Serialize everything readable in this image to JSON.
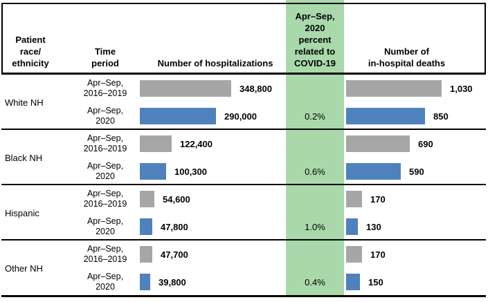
{
  "colors": {
    "baseline_bar": "#a6a6a6",
    "pandemic_bar": "#4f81bd",
    "covid_column_band": "#a9d8ab",
    "rule": "#000000"
  },
  "header": {
    "race": "Patient\nrace/\nethnicity",
    "time": "Time\nperiod",
    "hospitalizations": "Number of hospitalizations",
    "covid_percent": "Apr–Sep,\n2020\npercent\nrelated to\nCOVID-19",
    "deaths": "Number of\nin-hospital deaths"
  },
  "chart_data": {
    "type": "bar",
    "orientation": "horizontal",
    "categories": [
      "White NH",
      "Black NH",
      "Hispanic",
      "Other NH"
    ],
    "time_periods": [
      "Apr–Sep, 2016–2019",
      "Apr–Sep, 2020"
    ],
    "legend_position": "none",
    "grid": false,
    "series": [
      {
        "name": "Number of hospitalizations, Apr–Sep, 2016–2019",
        "values": [
          348800,
          122400,
          54600,
          47700
        ]
      },
      {
        "name": "Number of hospitalizations, Apr–Sep, 2020",
        "values": [
          290000,
          100300,
          47800,
          39800
        ]
      },
      {
        "name": "Number of in-hospital deaths, Apr–Sep, 2016–2019",
        "values": [
          1030,
          690,
          170,
          170
        ]
      },
      {
        "name": "Number of in-hospital deaths, Apr–Sep, 2020",
        "values": [
          850,
          590,
          130,
          150
        ]
      },
      {
        "name": "Apr–Sep, 2020 percent related to COVID-19",
        "values": [
          "0.2%",
          "0.6%",
          "1.0%",
          "0.4%"
        ]
      }
    ],
    "groups": [
      {
        "race": "White NH",
        "rows": [
          {
            "time": "Apr–Sep,\n2016–2019",
            "hospitalizations": 348800,
            "hospitalizations_label": "348,800",
            "covid_percent": "",
            "deaths": 1030,
            "deaths_label": "1,030"
          },
          {
            "time": "Apr–Sep,\n2020",
            "hospitalizations": 290000,
            "hospitalizations_label": "290,000",
            "covid_percent": "0.2%",
            "deaths": 850,
            "deaths_label": "850"
          }
        ]
      },
      {
        "race": "Black NH",
        "rows": [
          {
            "time": "Apr–Sep,\n2016–2019",
            "hospitalizations": 122400,
            "hospitalizations_label": "122,400",
            "covid_percent": "",
            "deaths": 690,
            "deaths_label": "690"
          },
          {
            "time": "Apr–Sep,\n2020",
            "hospitalizations": 100300,
            "hospitalizations_label": "100,300",
            "covid_percent": "0.6%",
            "deaths": 590,
            "deaths_label": "590"
          }
        ]
      },
      {
        "race": "Hispanic",
        "rows": [
          {
            "time": "Apr–Sep,\n2016–2019",
            "hospitalizations": 54600,
            "hospitalizations_label": "54,600",
            "covid_percent": "",
            "deaths": 170,
            "deaths_label": "170"
          },
          {
            "time": "Apr–Sep,\n2020",
            "hospitalizations": 47800,
            "hospitalizations_label": "47,800",
            "covid_percent": "1.0%",
            "deaths": 130,
            "deaths_label": "130"
          }
        ]
      },
      {
        "race": "Other NH",
        "rows": [
          {
            "time": "Apr–Sep,\n2016–2019",
            "hospitalizations": 47700,
            "hospitalizations_label": "47,700",
            "covid_percent": "",
            "deaths": 170,
            "deaths_label": "170"
          },
          {
            "time": "Apr–Sep,\n2020",
            "hospitalizations": 39800,
            "hospitalizations_label": "39,800",
            "covid_percent": "0.4%",
            "deaths": 150,
            "deaths_label": "150"
          }
        ]
      }
    ]
  }
}
